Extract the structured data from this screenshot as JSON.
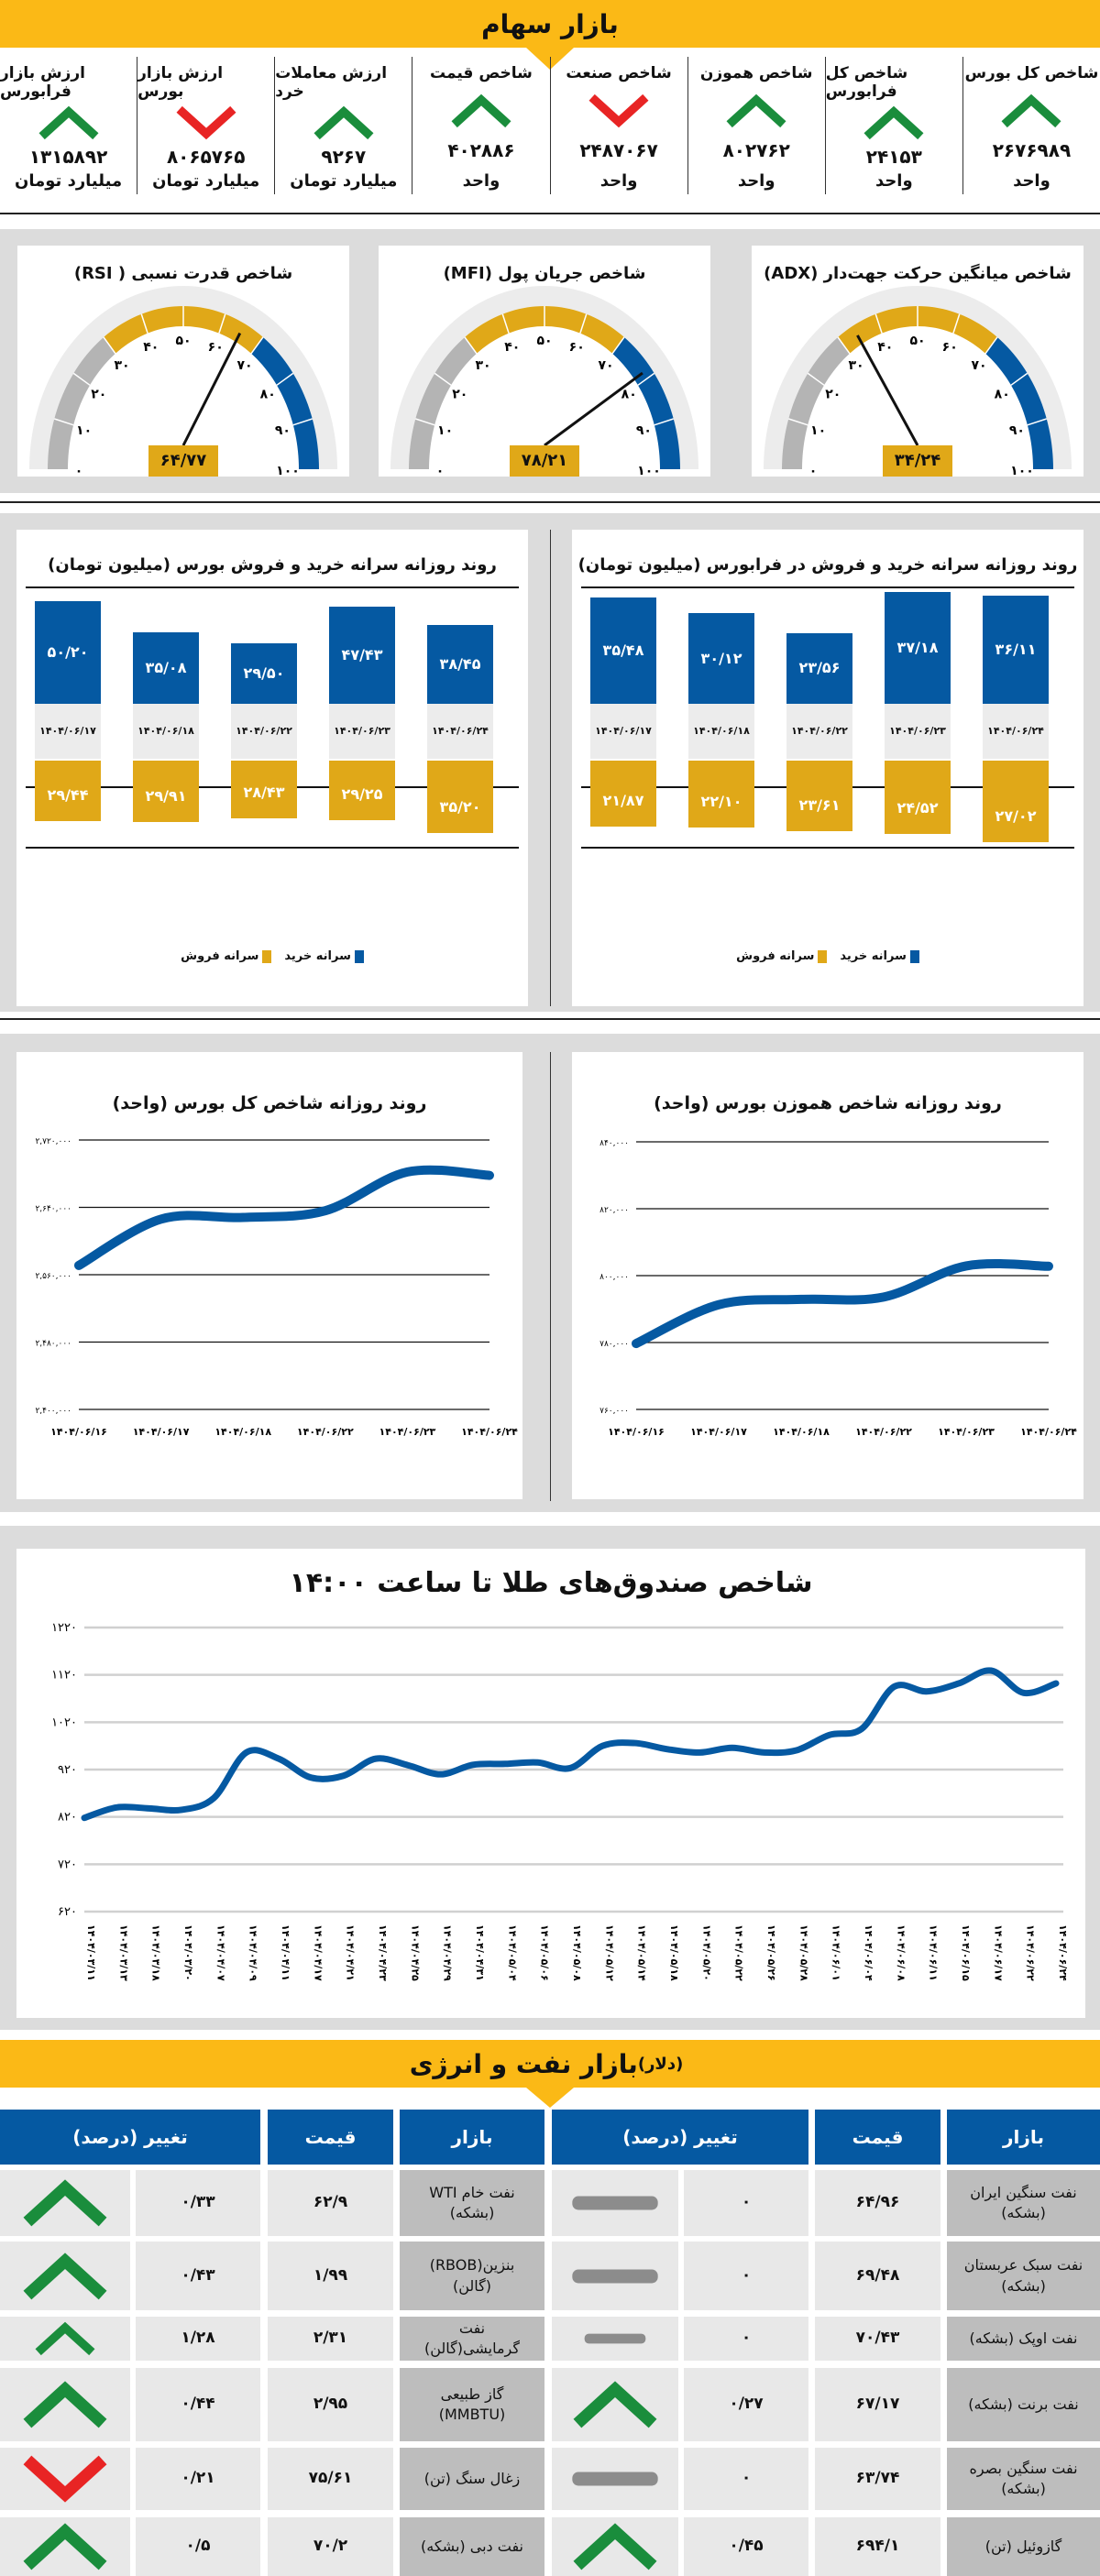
{
  "stocks": {
    "title": "بازار سهام",
    "cells": [
      {
        "label": "شاخص کل بورس",
        "value": "۲۶۷۶۹۸۹",
        "unit": "واحد",
        "trend": "up"
      },
      {
        "label": "شاخص کل فرابورس",
        "value": "۲۴۱۵۳",
        "unit": "واحد",
        "trend": "up"
      },
      {
        "label": "شاخص هموزن",
        "value": "۸۰۲۷۶۲",
        "unit": "واحد",
        "trend": "up"
      },
      {
        "label": "شاخص صنعت",
        "value": "۲۴۸۷۰۶۷",
        "unit": "واحد",
        "trend": "down"
      },
      {
        "label": "شاخص قیمت",
        "value": "۴۰۲۸۸۶",
        "unit": "واحد",
        "trend": "up"
      },
      {
        "label": "ارزش معاملات خرد",
        "value": "۹۲۶۷",
        "unit": "میلیارد تومان",
        "trend": "up"
      },
      {
        "label": "ارزش بازار بورس",
        "value": "۸۰۶۵۷۶۵",
        "unit": "میلیارد تومان",
        "trend": "down"
      },
      {
        "label": "ارزش بازار فرابورس",
        "value": "۱۳۱۵۸۹۲",
        "unit": "میلیارد تومان",
        "trend": "up"
      }
    ]
  },
  "colors": {
    "yellow": "#fbb916",
    "gauge_yellow": "#e0a818",
    "blue": "#0559a2",
    "up": "#1a8d3c",
    "down": "#e82424",
    "flat": "#8c8c8c",
    "gray": "#b4b4b4"
  },
  "gauges": [
    {
      "title": "شاخص میانگین حرکت جهت‌دار (ADX)",
      "value": 34.24,
      "value_label": "۳۴/۲۴"
    },
    {
      "title": "شاخص جریان پول (MFI)",
      "value": 78.21,
      "value_label": "۷۸/۲۱"
    },
    {
      "title": "شاخص قدرت نسبی ( RSI)",
      "value": 64.77,
      "value_label": "۶۴/۷۷"
    }
  ],
  "gauge_ticks": [
    "۰",
    "۱۰",
    "۲۰",
    "۳۰",
    "۴۰",
    "۵۰",
    "۶۰",
    "۷۰",
    "۸۰",
    "۹۰",
    "۱۰۰"
  ],
  "chart_data": [
    {
      "type": "bar",
      "title": "روند روزانه سرانه خرید و فروش در فرابورس (میلیون تومان)",
      "categories": [
        "۱۴۰۴/۰۶/۱۷",
        "۱۴۰۴/۰۶/۱۸",
        "۱۴۰۴/۰۶/۲۲",
        "۱۴۰۴/۰۶/۲۳",
        "۱۴۰۴/۰۶/۲۴"
      ],
      "series": [
        {
          "name": "سرانه خرید",
          "values": [
            35.48,
            30.12,
            23.56,
            37.18,
            36.11
          ],
          "labels": [
            "۳۵/۴۸",
            "۳۰/۱۲",
            "۲۳/۵۶",
            "۳۷/۱۸",
            "۳۶/۱۱"
          ]
        },
        {
          "name": "سرانه فروش",
          "values": [
            21.87,
            22.1,
            23.61,
            24.52,
            27.02
          ],
          "labels": [
            "۲۱/۸۷",
            "۲۲/۱۰",
            "۲۳/۶۱",
            "۲۴/۵۲",
            "۲۷/۰۲"
          ]
        }
      ]
    },
    {
      "type": "bar",
      "title": "روند روزانه سرانه خرید و فروش بورس (میلیون تومان)",
      "categories": [
        "۱۴۰۴/۰۶/۱۷",
        "۱۴۰۴/۰۶/۱۸",
        "۱۴۰۴/۰۶/۲۲",
        "۱۴۰۴/۰۶/۲۳",
        "۱۴۰۴/۰۶/۲۴"
      ],
      "series": [
        {
          "name": "سرانه خرید",
          "values": [
            50.2,
            35.08,
            29.5,
            47.43,
            38.45
          ],
          "labels": [
            "۵۰/۲۰",
            "۳۵/۰۸",
            "۲۹/۵۰",
            "۴۷/۴۳",
            "۳۸/۴۵"
          ]
        },
        {
          "name": "سرانه فروش",
          "values": [
            29.44,
            29.91,
            28.43,
            29.25,
            35.2
          ],
          "labels": [
            "۲۹/۴۴",
            "۲۹/۹۱",
            "۲۸/۴۳",
            "۲۹/۲۵",
            "۳۵/۲۰"
          ]
        }
      ]
    },
    {
      "type": "line",
      "title": "روند روزانه شاخص هموزن بورس (واحد)",
      "x": [
        "۱۴۰۴/۰۶/۱۶",
        "۱۴۰۴/۰۶/۱۷",
        "۱۴۰۴/۰۶/۱۸",
        "۱۴۰۴/۰۶/۲۲",
        "۱۴۰۴/۰۶/۲۳",
        "۱۴۰۴/۰۶/۲۴"
      ],
      "values": [
        779700,
        791300,
        792900,
        793600,
        802900,
        802800
      ],
      "ylim": [
        760000,
        840000
      ],
      "yticks": [
        760000,
        780000,
        800000,
        820000,
        840000
      ],
      "ytick_labels": [
        "۷۶۰,۰۰۰",
        "۷۸۰,۰۰۰",
        "۸۰۰,۰۰۰",
        "۸۲۰,۰۰۰",
        "۸۴۰,۰۰۰"
      ]
    },
    {
      "type": "line",
      "title": "روند روزانه شاخص کل بورس (واحد)",
      "x": [
        "۱۴۰۴/۰۶/۱۶",
        "۱۴۰۴/۰۶/۱۷",
        "۱۴۰۴/۰۶/۱۸",
        "۱۴۰۴/۰۶/۲۲",
        "۱۴۰۴/۰۶/۲۳",
        "۱۴۰۴/۰۶/۲۴"
      ],
      "values": [
        2571000,
        2626000,
        2628000,
        2636000,
        2682000,
        2678000
      ],
      "ylim": [
        2400000,
        2720000
      ],
      "yticks": [
        2400000,
        2480000,
        2560000,
        2640000,
        2720000
      ],
      "ytick_labels": [
        "۲,۴۰۰,۰۰۰",
        "۲,۴۸۰,۰۰۰",
        "۲,۵۶۰,۰۰۰",
        "۲,۶۴۰,۰۰۰",
        "۲,۷۲۰,۰۰۰"
      ]
    },
    {
      "type": "line",
      "title": "شاخص صندوق‌های طلا تا ساعت ۱۴:۰۰",
      "x": [
        "۱۴۰۴/۰۳/۱۱",
        "۱۴۰۴/۰۳/۱۳",
        "۱۴۰۴/۰۳/۱۸",
        "۱۴۰۴/۰۳/۲۰",
        "۱۴۰۴/۰۴/۰۷",
        "۱۴۰۴/۰۴/۰۹",
        "۱۴۰۴/۰۴/۱۱",
        "۱۴۰۴/۰۴/۱۷",
        "۱۴۰۴/۰۴/۲۱",
        "۱۴۰۴/۰۴/۲۳",
        "۱۴۰۴/۰۴/۲۵",
        "۱۴۰۴/۰۴/۲۹",
        "۱۴۰۴/۰۴/۳۱",
        "۱۴۰۴/۰۵/۰۴",
        "۱۴۰۴/۰۵/۰۶",
        "۱۴۰۴/۰۵/۰۸",
        "۱۴۰۴/۰۵/۱۲",
        "۱۴۰۴/۰۵/۱۴",
        "۱۴۰۴/۰۵/۱۸",
        "۱۴۰۴/۰۵/۲۰",
        "۱۴۰۴/۰۵/۲۲",
        "۱۴۰۴/۰۵/۲۶",
        "۱۴۰۴/۰۵/۲۸",
        "۱۴۰۴/۰۶/۰۱",
        "۱۴۰۴/۰۶/۰۴",
        "۱۴۰۴/۰۶/۰۸",
        "۱۴۰۴/۰۶/۱۱",
        "۱۴۰۴/۰۶/۱۵",
        "۱۴۰۴/۰۶/۱۷",
        "۱۴۰۴/۰۶/۲۲",
        "۱۴۰۴/۰۶/۲۴"
      ],
      "values": [
        818,
        840,
        838,
        835,
        860,
        956,
        943,
        903,
        907,
        943,
        929,
        910,
        930,
        932,
        935,
        923,
        970,
        976,
        963,
        956,
        966,
        956,
        961,
        993,
        1006,
        1095,
        1085,
        1102,
        1129,
        1082,
        1102
      ],
      "ylim": [
        620,
        1220
      ],
      "yticks": [
        620,
        720,
        820,
        920,
        1020,
        1120,
        1220
      ],
      "ytick_labels": [
        "۶۲۰",
        "۷۲۰",
        "۸۲۰",
        "۹۲۰",
        "۱۰۲۰",
        "۱۱۲۰",
        "۱۲۲۰"
      ],
      "grid": true
    }
  ],
  "energy": {
    "title": "بازار نفت و انرژی",
    "title_unit": "(دلار)",
    "headers": {
      "market": "بازار",
      "price": "قیمت",
      "change": "تغییر (درصد)"
    },
    "right": [
      {
        "market": "نفت سنگین ایران (بشکه)",
        "price": "۶۴/۹۶",
        "change": "۰",
        "trend": "flat"
      },
      {
        "market": "نفت سبک عربستان (بشکه)",
        "price": "۶۹/۴۸",
        "change": "۰",
        "trend": "flat"
      },
      {
        "market": "نفت اوپک (بشکه)",
        "price": "۷۰/۴۳",
        "change": "۰",
        "trend": "flat"
      },
      {
        "market": "نفت برنت (بشکه)",
        "price": "۶۷/۱۷",
        "change": "۰/۲۷",
        "trend": "up"
      },
      {
        "market": "نفت سنگین بصره (بشکه)",
        "price": "۶۳/۷۴",
        "change": "۰",
        "trend": "flat"
      },
      {
        "market": "گازوئیل (تن)",
        "price": "۶۹۴/۱",
        "change": "۰/۴۵",
        "trend": "up"
      }
    ],
    "left": [
      {
        "market": "نفت خام WTI (بشکه)",
        "price": "۶۲/۹",
        "change": "۰/۳۳",
        "trend": "up"
      },
      {
        "market": "بنزین(RBOB) (گالن)",
        "price": "۱/۹۹",
        "change": "۰/۴۳",
        "trend": "up"
      },
      {
        "market": "نفت گرمایشی(گالن)",
        "price": "۲/۳۱",
        "change": "۱/۲۸",
        "trend": "up"
      },
      {
        "market": "گاز طبیعی (MMBTU)",
        "price": "۲/۹۵",
        "change": "۰/۴۴",
        "trend": "up"
      },
      {
        "market": "زغال سنگ (تن)",
        "price": "۷۵/۶۱",
        "change": "۰/۲۱",
        "trend": "down"
      },
      {
        "market": "نفت دبی (بشکه)",
        "price": "۷۰/۲",
        "change": "۰/۵",
        "trend": "up"
      }
    ]
  }
}
